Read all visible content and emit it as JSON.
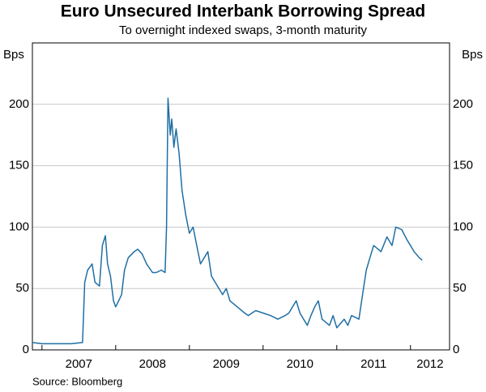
{
  "chart_data": {
    "type": "line",
    "title": "Euro Unsecured Interbank Borrowing Spread",
    "subtitle": "To overnight indexed swaps, 3-month maturity",
    "y_label": "Bps",
    "source": "Source: Bloomberg",
    "x": [
      2006.87,
      2007.0,
      2007.2,
      2007.4,
      2007.55,
      2007.58,
      2007.62,
      2007.68,
      2007.72,
      2007.78,
      2007.82,
      2007.86,
      2007.89,
      2007.93,
      2007.97,
      2008.0,
      2008.04,
      2008.08,
      2008.12,
      2008.17,
      2008.25,
      2008.3,
      2008.36,
      2008.42,
      2008.5,
      2008.55,
      2008.62,
      2008.67,
      2008.69,
      2008.71,
      2008.74,
      2008.76,
      2008.79,
      2008.82,
      2008.86,
      2008.9,
      2008.95,
      2009.0,
      2009.05,
      2009.1,
      2009.15,
      2009.25,
      2009.3,
      2009.35,
      2009.45,
      2009.5,
      2009.55,
      2009.65,
      2009.75,
      2009.8,
      2009.85,
      2009.9,
      2010.0,
      2010.1,
      2010.2,
      2010.3,
      2010.35,
      2010.4,
      2010.45,
      2010.5,
      2010.55,
      2010.6,
      2010.65,
      2010.7,
      2010.75,
      2010.8,
      2010.9,
      2010.95,
      2011.0,
      2011.1,
      2011.15,
      2011.2,
      2011.3,
      2011.35,
      2011.4,
      2011.45,
      2011.5,
      2011.6,
      2011.68,
      2011.75,
      2011.8,
      2011.88,
      2011.95,
      2012.05,
      2012.12,
      2012.16
    ],
    "series": [
      {
        "name": "Spread",
        "color": "#1f6fa3",
        "values": [
          6,
          5,
          5,
          5,
          6,
          55,
          65,
          70,
          55,
          52,
          85,
          93,
          70,
          60,
          40,
          35,
          40,
          45,
          65,
          75,
          80,
          82,
          78,
          70,
          63,
          63,
          65,
          63,
          100,
          205,
          175,
          188,
          165,
          180,
          160,
          130,
          110,
          95,
          100,
          85,
          70,
          80,
          60,
          55,
          45,
          50,
          40,
          35,
          30,
          28,
          30,
          32,
          30,
          28,
          25,
          28,
          30,
          35,
          40,
          30,
          25,
          20,
          28,
          35,
          40,
          25,
          20,
          28,
          18,
          25,
          20,
          28,
          25,
          45,
          65,
          75,
          85,
          80,
          92,
          85,
          100,
          98,
          90,
          80,
          75,
          73
        ]
      }
    ],
    "xlim": [
      2006.87,
      2012.53
    ],
    "xticks": [
      {
        "value": 2007,
        "label": "2007"
      },
      {
        "value": 2008,
        "label": "2008"
      },
      {
        "value": 2009,
        "label": "2009"
      },
      {
        "value": 2010,
        "label": "2010"
      },
      {
        "value": 2011,
        "label": "2011"
      },
      {
        "value": 2012,
        "label": "2012"
      }
    ],
    "ylim": [
      0,
      250
    ],
    "yticks": [
      0,
      50,
      100,
      150,
      200
    ],
    "grid": true
  }
}
